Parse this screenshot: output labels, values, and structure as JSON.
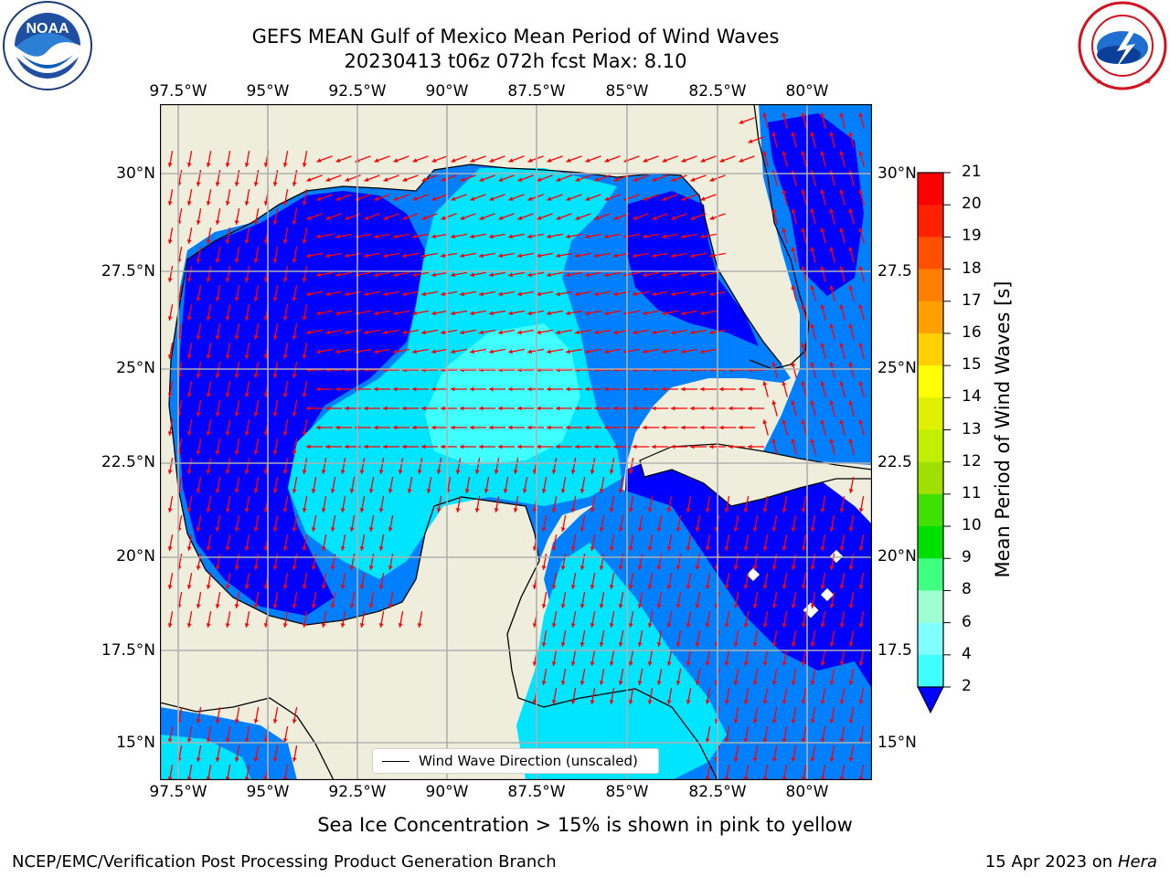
{
  "title": {
    "line1": "GEFS MEAN Gulf of Mexico Mean Period of Wind Waves",
    "line2": "20230413 t06z 072h fcst   Max: 8.10"
  },
  "lon_ticks": [
    "97.5°W",
    "95°W",
    "92.5°W",
    "90°W",
    "87.5°W",
    "85°W",
    "82.5°W",
    "80°W"
  ],
  "lat_ticks_left": [
    "30°N",
    "27.5°N",
    "25°N",
    "22.5°N",
    "20°N",
    "17.5°N",
    "15°N"
  ],
  "lat_ticks_right": [
    "30°N",
    "27.5",
    "25°N",
    "22.5",
    "20°N",
    "17.5",
    "15°N"
  ],
  "colorbar": {
    "label": "Mean Period of Wind Waves [s]",
    "ticks": [
      "21",
      "20",
      "19",
      "18",
      "17",
      "16",
      "15",
      "14",
      "13",
      "12",
      "11",
      "10",
      "9",
      "8",
      "6",
      "4",
      "2"
    ],
    "colors": [
      "#0000ff",
      "#0080ff",
      "#00e5ff",
      "#40ffff",
      "#80ffff",
      "#a0ffd0",
      "#40ff80",
      "#00e000",
      "#40e000",
      "#a0e000",
      "#c0f000",
      "#e0f000",
      "#ffff00",
      "#ffd000",
      "#ffa000",
      "#ff8000",
      "#ff5000",
      "#ff2000",
      "#ff0000"
    ]
  },
  "legend": {
    "label": "Wind Wave Direction (unscaled)"
  },
  "ice_note": "Sea Ice Concentration > 15% is shown in pink to yellow",
  "footer": {
    "left": "NCEP/EMC/Verification Post Processing Product Generation Branch",
    "right_date": "15 Apr 2023 on",
    "right_host": "Hera"
  },
  "logos": {
    "noaa": "NOAA",
    "noaa_ring": "NATIONAL OCEANIC AND ATMOSPHERIC ADMINISTRATION · U.S. DEPARTMENT OF COMMERCE",
    "nws_ring": "NATIONAL WEATHER SERVICE"
  },
  "colors": {
    "land": "#efeedd",
    "gridline": "#b0b0b0",
    "arrow": "#ff0000"
  }
}
